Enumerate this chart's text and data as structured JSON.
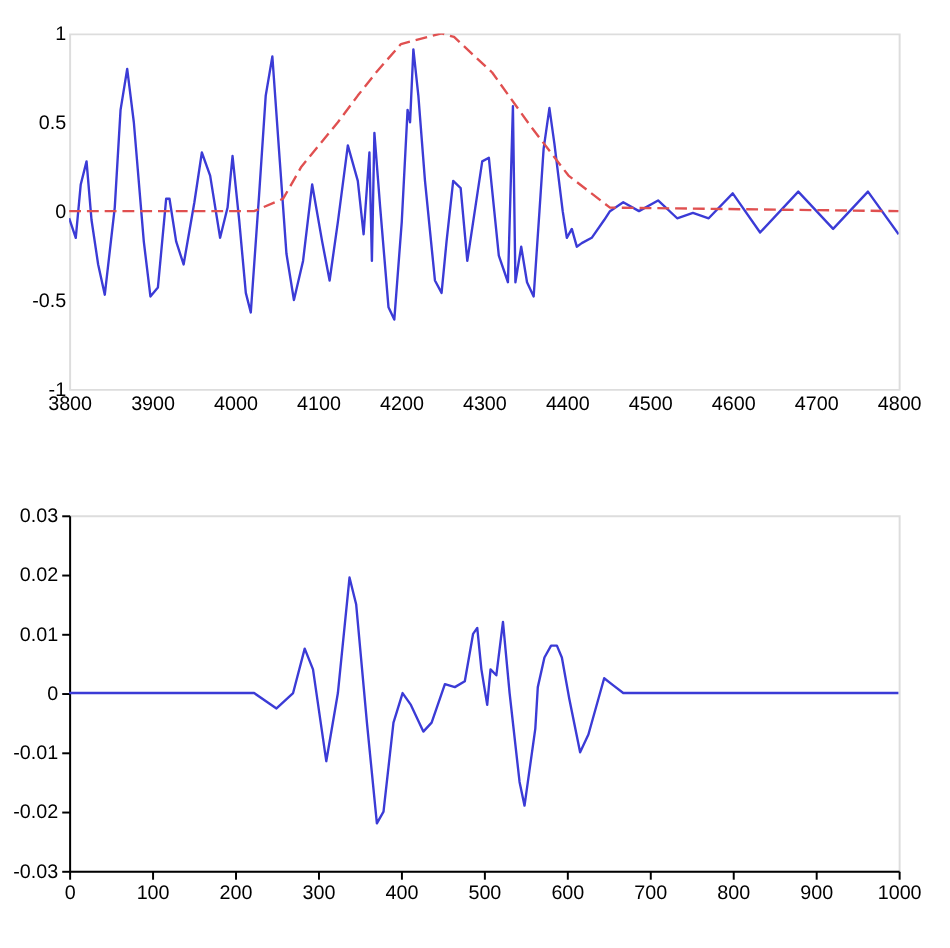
{
  "chart_data": [
    {
      "type": "line",
      "xlim": [
        3800,
        4800
      ],
      "ylim": [
        -1,
        1
      ],
      "xticks": [
        3800,
        3900,
        4000,
        4100,
        4200,
        4300,
        4400,
        4500,
        4600,
        4700,
        4800
      ],
      "yticks": [
        -1,
        -0.5,
        0,
        0.5,
        1
      ],
      "grid": false,
      "series": [
        {
          "color": "#3b3bd6",
          "line_style": "solid",
          "x": [
            3800,
            3808,
            3814,
            3821,
            3827,
            3835,
            3843,
            3855,
            3862,
            3870,
            3878,
            3890,
            3898,
            3907,
            3917,
            3921,
            3929,
            3938,
            3951,
            3960,
            3970,
            3982,
            3991,
            3997,
            4005,
            4013,
            4019,
            4029,
            4037,
            4045,
            4054,
            4062,
            4071,
            4082,
            4093,
            4105,
            4114,
            4124,
            4136,
            4148,
            4155,
            4162,
            4165,
            4168,
            4175,
            4185,
            4192,
            4201,
            4208,
            4211,
            4215,
            4221,
            4229,
            4241,
            4249,
            4255,
            4263,
            4272,
            4280,
            4298,
            4306,
            4318,
            4329,
            4335,
            4338,
            4345,
            4352,
            4360,
            4367,
            4372,
            4379,
            4385,
            4395,
            4400,
            4406,
            4412,
            4418,
            4430,
            4445,
            4452,
            4468,
            4487,
            4510,
            4533,
            4552,
            4571,
            4600,
            4633,
            4679,
            4721,
            4763,
            4800
          ],
          "values": [
            -0.04,
            -0.15,
            0.15,
            0.28,
            -0.05,
            -0.3,
            -0.47,
            0.02,
            0.57,
            0.8,
            0.5,
            -0.17,
            -0.48,
            -0.43,
            0.07,
            0.07,
            -0.17,
            -0.3,
            0.05,
            0.33,
            0.2,
            -0.15,
            0.02,
            0.31,
            -0.05,
            -0.46,
            -0.57,
            0.09,
            0.65,
            0.87,
            0.28,
            -0.24,
            -0.5,
            -0.28,
            0.15,
            -0.17,
            -0.39,
            -0.06,
            0.37,
            0.17,
            -0.13,
            0.33,
            -0.28,
            0.44,
            0.02,
            -0.54,
            -0.61,
            -0.06,
            0.57,
            0.5,
            0.91,
            0.65,
            0.17,
            -0.39,
            -0.46,
            -0.17,
            0.17,
            0.13,
            -0.28,
            0.28,
            0.3,
            -0.25,
            -0.4,
            0.59,
            -0.4,
            -0.2,
            -0.4,
            -0.48,
            0.0,
            0.35,
            0.58,
            0.38,
            0.0,
            -0.15,
            -0.1,
            -0.2,
            -0.18,
            -0.15,
            -0.05,
            0.0,
            0.05,
            0.0,
            0.06,
            -0.04,
            -0.01,
            -0.04,
            0.1,
            -0.12,
            0.11,
            -0.1,
            0.11,
            -0.13
          ]
        },
        {
          "color": "#e05050",
          "line_style": "dashed",
          "x": [
            3800,
            4023,
            4058,
            4080,
            4124,
            4148,
            4170,
            4200,
            4249,
            4264,
            4310,
            4356,
            4402,
            4452,
            4800
          ],
          "values": [
            0,
            0,
            0.07,
            0.25,
            0.5,
            0.65,
            0.78,
            0.94,
            1.0,
            0.98,
            0.78,
            0.48,
            0.2,
            0.02,
            0
          ]
        }
      ]
    },
    {
      "type": "line",
      "xlim": [
        0,
        1000
      ],
      "ylim": [
        -0.03,
        0.03
      ],
      "xticks": [
        0,
        100,
        200,
        300,
        400,
        500,
        600,
        700,
        800,
        900,
        1000
      ],
      "yticks": [
        -0.03,
        -0.02,
        -0.01,
        0,
        0.01,
        0.02,
        0.03
      ],
      "grid": false,
      "series": [
        {
          "color": "#3b3bd6",
          "line_style": "solid",
          "x": [
            0,
            215,
            223,
            250,
            270,
            284,
            294,
            310,
            324,
            338,
            346,
            359,
            371,
            379,
            391,
            402,
            412,
            427,
            437,
            453,
            465,
            477,
            487,
            492,
            497,
            504,
            508,
            515,
            523,
            531,
            543,
            549,
            556,
            562,
            565,
            573,
            581,
            588,
            594,
            603,
            616,
            626,
            645,
            656,
            668,
            1000
          ],
          "values": [
            0,
            0,
            0,
            -0.0026,
            0,
            0.0075,
            0.004,
            -0.0115,
            0,
            0.0195,
            0.015,
            -0.005,
            -0.022,
            -0.02,
            -0.005,
            0,
            -0.002,
            -0.0065,
            -0.005,
            0.0015,
            0.001,
            0.002,
            0.01,
            0.011,
            0.004,
            -0.002,
            0.004,
            0.003,
            0.012,
            0,
            -0.015,
            -0.019,
            -0.012,
            -0.006,
            0.001,
            0.006,
            0.008,
            0.008,
            0.006,
            -0.001,
            -0.01,
            -0.007,
            0.0025,
            0.0013,
            0,
            0
          ]
        }
      ]
    }
  ]
}
